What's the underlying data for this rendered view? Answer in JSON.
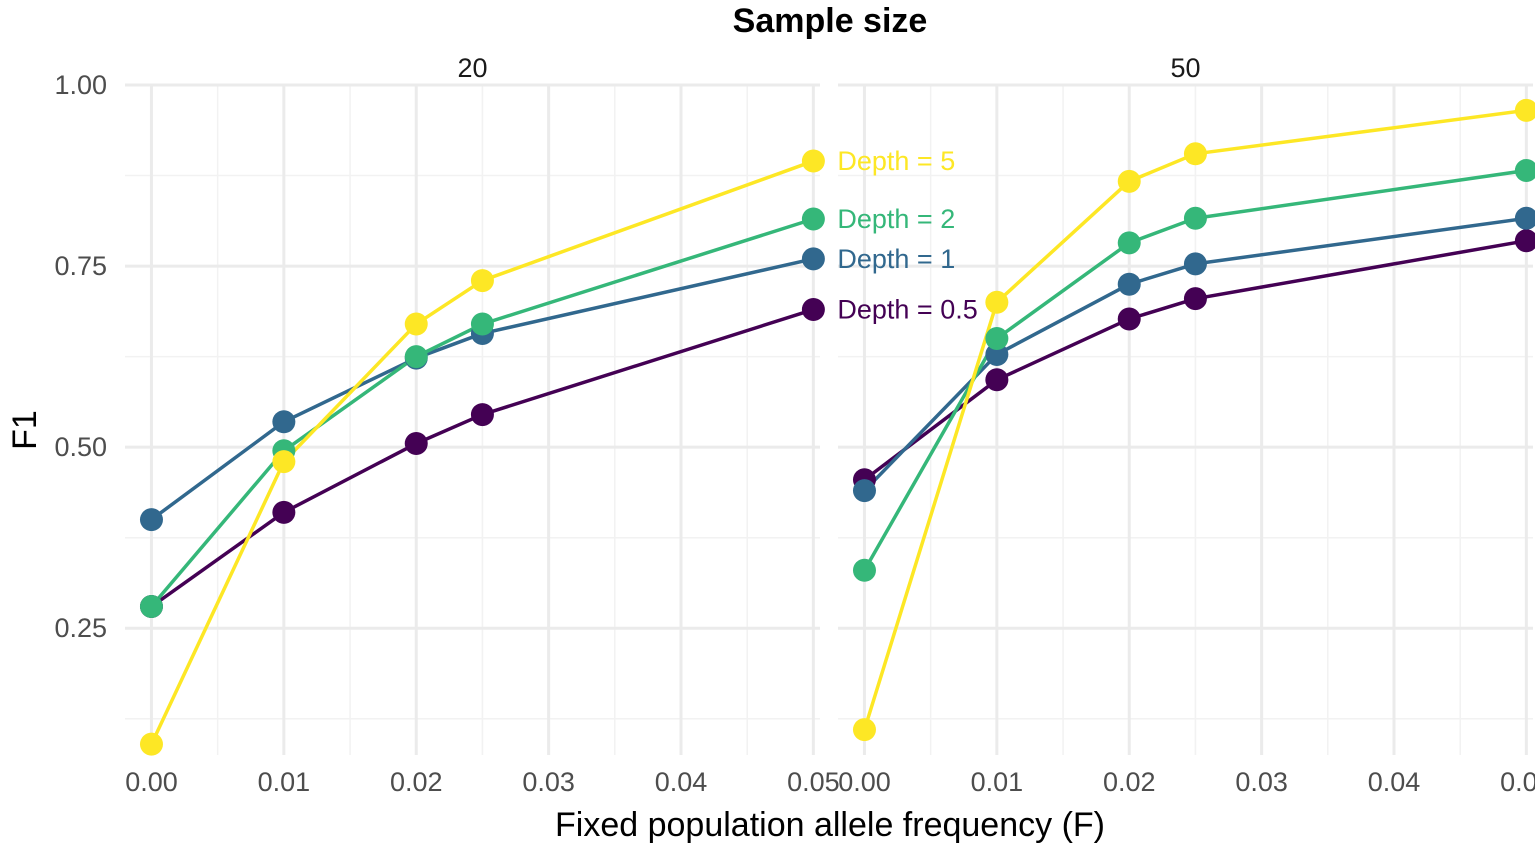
{
  "chart_data": {
    "type": "line",
    "title": "Sample size",
    "xlabel": "Fixed population allele frequency (F)",
    "ylabel": "F1",
    "x": [
      0.0,
      0.01,
      0.02,
      0.025,
      0.05
    ],
    "xlim": [
      -0.002,
      0.0505
    ],
    "ylim": [
      0.075,
      1.0
    ],
    "x_ticks": [
      "0.00",
      "0.01",
      "0.02",
      "0.03",
      "0.04",
      "0.05"
    ],
    "y_ticks": [
      "0.25",
      "0.50",
      "0.75",
      "1.00"
    ],
    "grid": true,
    "legend": "direct labels at end of lines in left panel",
    "panels": [
      {
        "label": "20",
        "series": [
          {
            "name": "Depth = 5",
            "color": "#FDE725",
            "values": [
              0.09,
              0.48,
              0.67,
              0.73,
              0.895
            ]
          },
          {
            "name": "Depth = 2",
            "color": "#35B779",
            "values": [
              0.28,
              0.495,
              0.625,
              0.67,
              0.815
            ]
          },
          {
            "name": "Depth = 1",
            "color": "#31688E",
            "values": [
              0.4,
              0.535,
              0.623,
              0.657,
              0.76
            ]
          },
          {
            "name": "Depth = 0.5",
            "color": "#440154",
            "values": [
              0.28,
              0.41,
              0.505,
              0.545,
              0.69
            ]
          }
        ]
      },
      {
        "label": "50",
        "series": [
          {
            "name": "Depth = 5",
            "color": "#FDE725",
            "values": [
              0.11,
              0.7,
              0.867,
              0.905,
              0.965
            ]
          },
          {
            "name": "Depth = 2",
            "color": "#35B779",
            "values": [
              0.33,
              0.65,
              0.782,
              0.816,
              0.882
            ]
          },
          {
            "name": "Depth = 1",
            "color": "#31688E",
            "values": [
              0.44,
              0.628,
              0.725,
              0.753,
              0.816
            ]
          },
          {
            "name": "Depth = 0.5",
            "color": "#440154",
            "values": [
              0.455,
              0.593,
              0.677,
              0.705,
              0.785
            ]
          }
        ]
      }
    ]
  }
}
